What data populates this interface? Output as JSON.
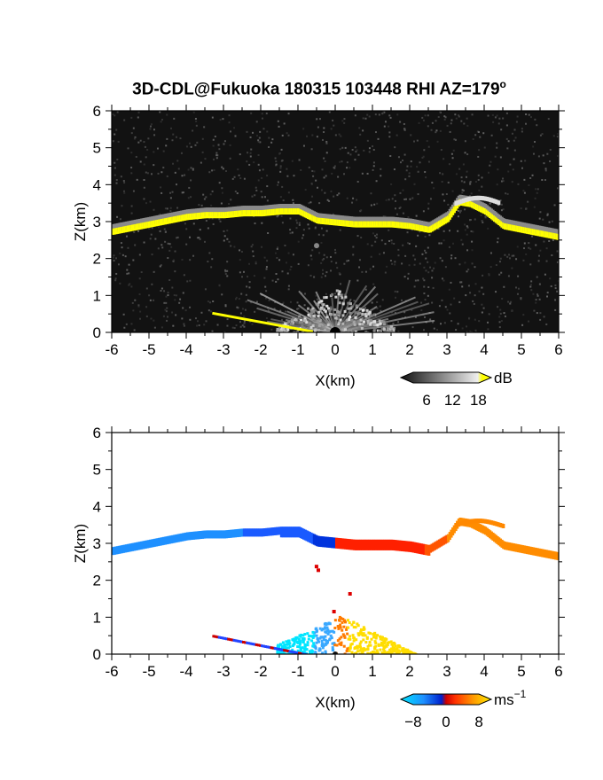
{
  "title_main": "3D-CDL@Fukuoka 180315 103448 RHI AZ=179",
  "title_deg": "o",
  "chart_data": [
    {
      "type": "heatmap",
      "name": "reflectivity",
      "xlabel": "X(km)",
      "ylabel": "Z(km)",
      "xlim": [
        -6,
        6
      ],
      "ylim": [
        0,
        6
      ],
      "xticks": [
        "-6",
        "-5",
        "-4",
        "-3",
        "-2",
        "-1",
        "0",
        "1",
        "2",
        "3",
        "4",
        "5",
        "6"
      ],
      "yticks": [
        "0",
        "1",
        "2",
        "3",
        "4",
        "5",
        "6"
      ],
      "colorbar": {
        "unit": "dB",
        "unit_sup": "",
        "ticks": [
          "6",
          "12",
          "18"
        ],
        "range": [
          0,
          21
        ]
      },
      "layer_profile": {
        "x": [
          -6.0,
          -5.5,
          -5.0,
          -4.5,
          -4.0,
          -3.5,
          -3.0,
          -2.5,
          -2.0,
          -1.5,
          -1.0,
          -0.5,
          0.0,
          0.5,
          1.0,
          1.5,
          2.0,
          2.5,
          3.0,
          3.3,
          3.6,
          4.0,
          4.5,
          5.0,
          5.5,
          6.0
        ],
        "z": [
          2.75,
          2.85,
          2.95,
          3.05,
          3.15,
          3.2,
          3.2,
          3.25,
          3.25,
          3.3,
          3.3,
          3.05,
          3.0,
          2.95,
          2.95,
          2.95,
          2.9,
          2.8,
          3.1,
          3.55,
          3.5,
          3.3,
          2.9,
          2.8,
          2.7,
          2.6
        ]
      }
    },
    {
      "type": "heatmap",
      "name": "doppler_velocity",
      "xlabel": "X(km)",
      "ylabel": "Z(km)",
      "xlim": [
        -6,
        6
      ],
      "ylim": [
        0,
        6
      ],
      "xticks": [
        "-6",
        "-5",
        "-4",
        "-3",
        "-2",
        "-1",
        "0",
        "1",
        "2",
        "3",
        "4",
        "5",
        "6"
      ],
      "yticks": [
        "0",
        "1",
        "2",
        "3",
        "4",
        "5",
        "6"
      ],
      "colorbar": {
        "unit": "ms",
        "unit_sup": "−1",
        "ticks": [
          "−8",
          "0",
          "8"
        ],
        "range": [
          -11,
          11
        ]
      }
    }
  ],
  "colors": {
    "layer_high": "#ffff00",
    "neg_far": "#1e90ff",
    "neg_near": "#0033dd",
    "pos_near": "#ff2000",
    "pos_far": "#ff8c00",
    "cyan": "#00e5ff",
    "yellow": "#ffdd00"
  }
}
